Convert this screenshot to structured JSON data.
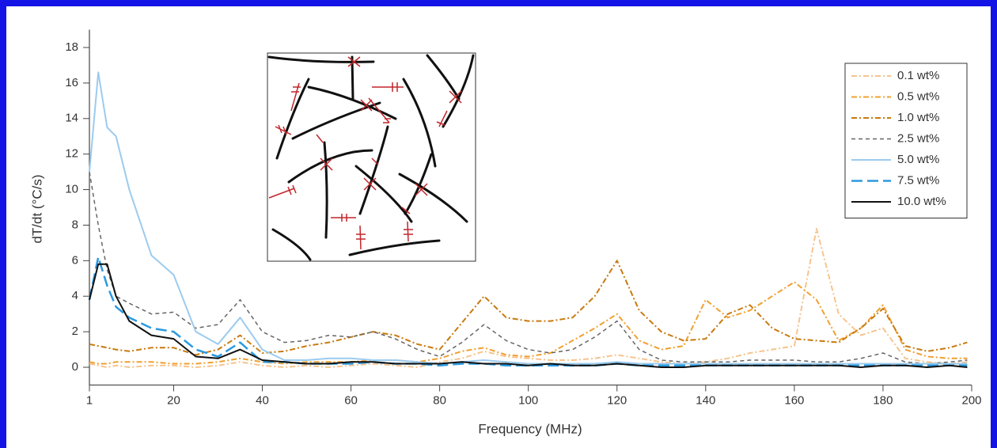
{
  "chart_data": {
    "type": "line",
    "x_label": "Frequency (MHz)",
    "y_label": "dT/dt (°C/s)",
    "x": [
      1,
      3,
      5,
      7,
      10,
      15,
      20,
      25,
      30,
      35,
      40,
      45,
      50,
      55,
      60,
      65,
      70,
      75,
      80,
      85,
      90,
      95,
      100,
      105,
      110,
      115,
      120,
      125,
      130,
      135,
      140,
      145,
      150,
      155,
      160,
      165,
      170,
      175,
      180,
      185,
      190,
      195,
      199
    ],
    "xlim": [
      1,
      200
    ],
    "xticks": [
      1,
      20,
      40,
      60,
      80,
      100,
      120,
      140,
      160,
      180,
      200
    ],
    "ylim": [
      -1,
      19
    ],
    "yticks": [
      0,
      2,
      4,
      6,
      8,
      10,
      12,
      14,
      16,
      18
    ],
    "legend": "upper right",
    "series": [
      {
        "name": "0.1 wt%",
        "color": "#f6c48e",
        "style": "dash-dot",
        "values": [
          0.2,
          0.1,
          0.0,
          0.1,
          0.0,
          0.1,
          0.1,
          0.0,
          0.1,
          0.3,
          0.1,
          0.0,
          0.1,
          0.0,
          0.1,
          0.2,
          0.1,
          0.0,
          0.3,
          0.5,
          0.9,
          0.6,
          0.5,
          0.4,
          0.4,
          0.5,
          0.7,
          0.5,
          0.3,
          0.2,
          0.3,
          0.5,
          0.8,
          1.0,
          1.2,
          7.8,
          3.0,
          1.8,
          2.2,
          0.5,
          0.3,
          0.2,
          0.3
        ]
      },
      {
        "name": "0.5 wt%",
        "color": "#f0a030",
        "style": "dash-dot",
        "values": [
          0.3,
          0.2,
          0.2,
          0.3,
          0.3,
          0.3,
          0.2,
          0.2,
          0.3,
          0.5,
          0.3,
          0.2,
          0.3,
          0.3,
          0.3,
          0.4,
          0.4,
          0.3,
          0.5,
          0.9,
          1.1,
          0.7,
          0.6,
          0.8,
          1.5,
          2.2,
          3.0,
          1.5,
          1.0,
          1.2,
          3.8,
          2.8,
          3.2,
          4.0,
          4.8,
          3.8,
          1.5,
          2.2,
          3.5,
          1.0,
          0.6,
          0.5,
          0.5
        ]
      },
      {
        "name": "1.0 wt%",
        "color": "#c87a10",
        "style": "dash-dot",
        "values": [
          1.3,
          1.2,
          1.1,
          1.0,
          0.9,
          1.1,
          1.1,
          0.7,
          1.0,
          1.8,
          0.8,
          0.9,
          1.2,
          1.4,
          1.7,
          2.0,
          1.8,
          1.3,
          1.0,
          2.5,
          4.0,
          2.8,
          2.6,
          2.6,
          2.8,
          4.0,
          6.0,
          3.2,
          2.0,
          1.5,
          1.6,
          3.0,
          3.5,
          2.2,
          1.6,
          1.5,
          1.4,
          2.2,
          3.3,
          1.2,
          0.9,
          1.1,
          1.4
        ]
      },
      {
        "name": "2.5 wt%",
        "color": "#666666",
        "style": "dash",
        "values": [
          11,
          8,
          5.5,
          4.0,
          3.6,
          3.0,
          3.1,
          2.2,
          2.4,
          3.8,
          2.0,
          1.4,
          1.5,
          1.8,
          1.7,
          2.0,
          1.6,
          1.0,
          0.6,
          1.4,
          2.4,
          1.5,
          1.0,
          0.8,
          1.0,
          1.7,
          2.6,
          1.0,
          0.4,
          0.3,
          0.3,
          0.3,
          0.4,
          0.4,
          0.4,
          0.3,
          0.3,
          0.5,
          0.8,
          0.3,
          0.2,
          0.3,
          0.4
        ]
      },
      {
        "name": "5.0 wt%",
        "color": "#9ccbee",
        "style": "solid",
        "values": [
          11.0,
          16.6,
          13.5,
          13.0,
          10.0,
          6.3,
          5.2,
          2.0,
          1.3,
          2.8,
          1.0,
          0.4,
          0.4,
          0.5,
          0.5,
          0.4,
          0.4,
          0.3,
          0.2,
          0.3,
          0.4,
          0.3,
          0.2,
          0.2,
          0.2,
          0.2,
          0.3,
          0.2,
          0.2,
          0.2,
          0.2,
          0.2,
          0.2,
          0.2,
          0.2,
          0.2,
          0.2,
          0.2,
          0.2,
          0.2,
          0.2,
          0.2,
          0.2
        ]
      },
      {
        "name": "7.5 wt%",
        "color": "#2b9ae0",
        "style": "long-dash",
        "values": [
          3.8,
          6.2,
          4.6,
          3.4,
          2.8,
          2.2,
          2.0,
          1.0,
          0.6,
          1.4,
          0.3,
          0.3,
          0.2,
          0.2,
          0.2,
          0.3,
          0.2,
          0.2,
          0.1,
          0.2,
          0.2,
          0.1,
          0.1,
          0.1,
          0.1,
          0.1,
          0.2,
          0.1,
          0.1,
          0.1,
          0.1,
          0.1,
          0.1,
          0.1,
          0.1,
          0.1,
          0.1,
          0.1,
          0.1,
          0.1,
          0.1,
          0.1,
          0.1
        ]
      },
      {
        "name": "10.0 wt%",
        "color": "#111111",
        "style": "solid",
        "values": [
          3.8,
          5.8,
          5.8,
          4.0,
          2.6,
          1.8,
          1.6,
          0.6,
          0.5,
          1.0,
          0.4,
          0.3,
          0.2,
          0.2,
          0.3,
          0.3,
          0.2,
          0.2,
          0.2,
          0.3,
          0.2,
          0.2,
          0.1,
          0.2,
          0.1,
          0.1,
          0.2,
          0.1,
          0.0,
          0.0,
          0.1,
          0.1,
          0.1,
          0.1,
          0.1,
          0.1,
          0.1,
          0.0,
          0.1,
          0.1,
          0.0,
          0.1,
          0.0
        ]
      }
    ]
  }
}
